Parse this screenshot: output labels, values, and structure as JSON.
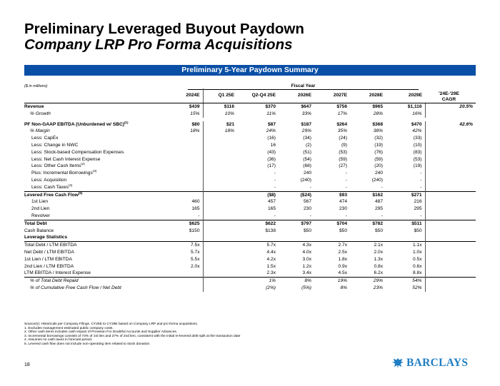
{
  "title": {
    "line1": "Preliminary Leveraged Buyout Paydown",
    "line2": "Company LRP Pro Forma Acquisitions"
  },
  "banner": "Preliminary 5-Year Paydown Summary",
  "units": "($ in millions)",
  "fiscal_year_label": "Fiscal Year",
  "columns": [
    "2024E",
    "Q1 25E",
    "Q2-Q4 25E",
    "2026E",
    "2027E",
    "2028E",
    "2029E"
  ],
  "cagr_label": [
    "'24E-'29E",
    "CAGR"
  ],
  "rows": [
    {
      "type": "b",
      "label": "Revenue",
      "sup": "",
      "values": [
        "$439",
        "$116",
        "$370",
        "$647",
        "$756",
        "$965",
        "$1,116"
      ],
      "cagr": "20.5%"
    },
    {
      "type": "i",
      "label": "% Growth",
      "sup": "",
      "values": [
        "15%",
        "10%",
        "11%",
        "33%",
        "17%",
        "28%",
        "16%"
      ],
      "cagr": ""
    },
    {
      "type": "sp"
    },
    {
      "type": "b",
      "label": "PF Non-GAAP EBITDA (Unburdened w/ SBC)",
      "sup": "(1)",
      "values": [
        "$80",
        "$21",
        "$87",
        "$187",
        "$264",
        "$368",
        "$470"
      ],
      "cagr": "42.6%"
    },
    {
      "type": "i",
      "label": "% Margin",
      "sup": "",
      "values": [
        "18%",
        "18%",
        "24%",
        "29%",
        "35%",
        "38%",
        "42%"
      ],
      "cagr": ""
    },
    {
      "type": "ind",
      "label": "Less: CapEx",
      "sup": "",
      "values": [
        "",
        "",
        "(16)",
        "(34)",
        "(24)",
        "(32)",
        "(33)"
      ],
      "cagr": ""
    },
    {
      "type": "ind",
      "label": "Less: Change in NWC",
      "sup": "",
      "values": [
        "",
        "",
        "16",
        "(2)",
        "(9)",
        "(19)",
        "(10)"
      ],
      "cagr": ""
    },
    {
      "type": "ind",
      "label": "Less: Stock-based Compensation Expenses",
      "sup": "",
      "values": [
        "",
        "",
        "(43)",
        "(51)",
        "(53)",
        "(76)",
        "(83)"
      ],
      "cagr": ""
    },
    {
      "type": "ind",
      "label": "Less: Net Cash Interest Expense",
      "sup": "",
      "values": [
        "",
        "",
        "(36)",
        "(54)",
        "(59)",
        "(59)",
        "(53)"
      ],
      "cagr": ""
    },
    {
      "type": "ind",
      "label": "Less: Other Cash Items",
      "sup": "(2)",
      "values": [
        "",
        "",
        "(17)",
        "(68)",
        "(27)",
        "(20)",
        "(19)"
      ],
      "cagr": ""
    },
    {
      "type": "ind",
      "label": "Plus: Incremental Borrowings",
      "sup": "(3)",
      "values": [
        "",
        "",
        "-",
        "240",
        "-",
        "240",
        "-"
      ],
      "cagr": ""
    },
    {
      "type": "ind",
      "label": "Less: Acquisition",
      "sup": "",
      "values": [
        "",
        "",
        "-",
        "(240)",
        "-",
        "(240)",
        "-"
      ],
      "cagr": ""
    },
    {
      "type": "ind",
      "label": "Less: Cash Taxes",
      "sup": "(4)",
      "values": [
        "",
        "",
        "-",
        "-",
        "-",
        "-",
        "-"
      ],
      "cagr": ""
    },
    {
      "type": "b rule",
      "label": "Levered Free Cash Flow",
      "sup": "(5)",
      "values": [
        "",
        "",
        "($8)",
        "($24)",
        "$93",
        "$162",
        "$271"
      ],
      "cagr": ""
    },
    {
      "type": "ind",
      "label": "1st Lien",
      "sup": "",
      "values": [
        "460",
        "",
        "457",
        "567",
        "474",
        "487",
        "216"
      ],
      "cagr": ""
    },
    {
      "type": "ind",
      "label": "2nd Lien",
      "sup": "",
      "values": [
        "165",
        "",
        "165",
        "230",
        "230",
        "295",
        "295"
      ],
      "cagr": ""
    },
    {
      "type": "ind",
      "label": "Revolver",
      "sup": "",
      "values": [
        "-",
        "",
        "-",
        "-",
        "-",
        "-",
        "-"
      ],
      "cagr": ""
    },
    {
      "type": "b rule",
      "label": "Total Debt",
      "sup": "",
      "values": [
        "$625",
        "",
        "$622",
        "$797",
        "$704",
        "$782",
        "$511"
      ],
      "cagr": ""
    },
    {
      "type": "n",
      "label": "Cash Balance",
      "sup": "",
      "values": [
        "$150",
        "",
        "$138",
        "$50",
        "$50",
        "$50",
        "$50"
      ],
      "cagr": ""
    },
    {
      "type": "b",
      "label": "Leverage Statistics",
      "sup": "",
      "values": [
        "",
        "",
        "",
        "",
        "",
        "",
        ""
      ],
      "cagr": ""
    },
    {
      "type": "lev rule",
      "label": "Total Debt / LTM EBITDA",
      "sup": "",
      "values": [
        "7.5x",
        "",
        "5.7x",
        "4.3x",
        "2.7x",
        "2.1x",
        "1.1x"
      ],
      "cagr": ""
    },
    {
      "type": "lev",
      "label": "Net Debt / LTM EBITDA",
      "sup": "",
      "values": [
        "5.7x",
        "",
        "4.4x",
        "4.0x",
        "2.5x",
        "2.0x",
        "1.0x"
      ],
      "cagr": ""
    },
    {
      "type": "lev",
      "label": "1st Lien / LTM EBITDA",
      "sup": "",
      "values": [
        "5.5x",
        "",
        "4.2x",
        "3.0x",
        "1.8x",
        "1.3x",
        "0.5x"
      ],
      "cagr": ""
    },
    {
      "type": "lev",
      "label": "2nd Lien / LTM EBITDA",
      "sup": "",
      "values": [
        "2.0x",
        "",
        "1.5x",
        "1.2x",
        "0.9x",
        "0.8x",
        "0.6x"
      ],
      "cagr": ""
    },
    {
      "type": "lev",
      "label": "LTM EBITDA / Interest Expense",
      "sup": "",
      "values": [
        "",
        "",
        "2.3x",
        "3.4x",
        "4.5x",
        "6.2x",
        "8.8x"
      ],
      "cagr": ""
    },
    {
      "type": "i lev rule",
      "label": "% of Total Debt Repaid",
      "sup": "",
      "values": [
        "",
        "",
        "1%",
        "8%",
        "19%",
        "29%",
        "54%"
      ],
      "cagr": ""
    },
    {
      "type": "i lev",
      "label": "% of Cumulative Free Cash Flow / Net Debt",
      "sup": "",
      "values": [
        "",
        "",
        "(2%)",
        "(5%)",
        "8%",
        "23%",
        "52%"
      ],
      "cagr": ""
    }
  ],
  "sources": [
    "Source(s): Historicals per Company Filings. CY25E to CY29E based on Company LRP and pro forma acquisitions.",
    "1.      Excludes management estimated public company costs.",
    "2.      Other cash items includes cash impact of Provision For Doubtful Accounts and Supplier Advances.",
    "3.      Incremental borrowings consists of 73% of 1st lien and 27% of 2nd lien, consistent with the initial re-levered debt split at the transaction date",
    "4.      Assumes no cash taxes in forecast period.",
    "5.      Levered cash flow does not include non-operating item related to stock donation."
  ],
  "page_number": "18",
  "logo": {
    "text": "BARCLAYS",
    "icon": "eagle-icon",
    "color": "#1f7ec3"
  },
  "accent_color": "#0a4fa6"
}
